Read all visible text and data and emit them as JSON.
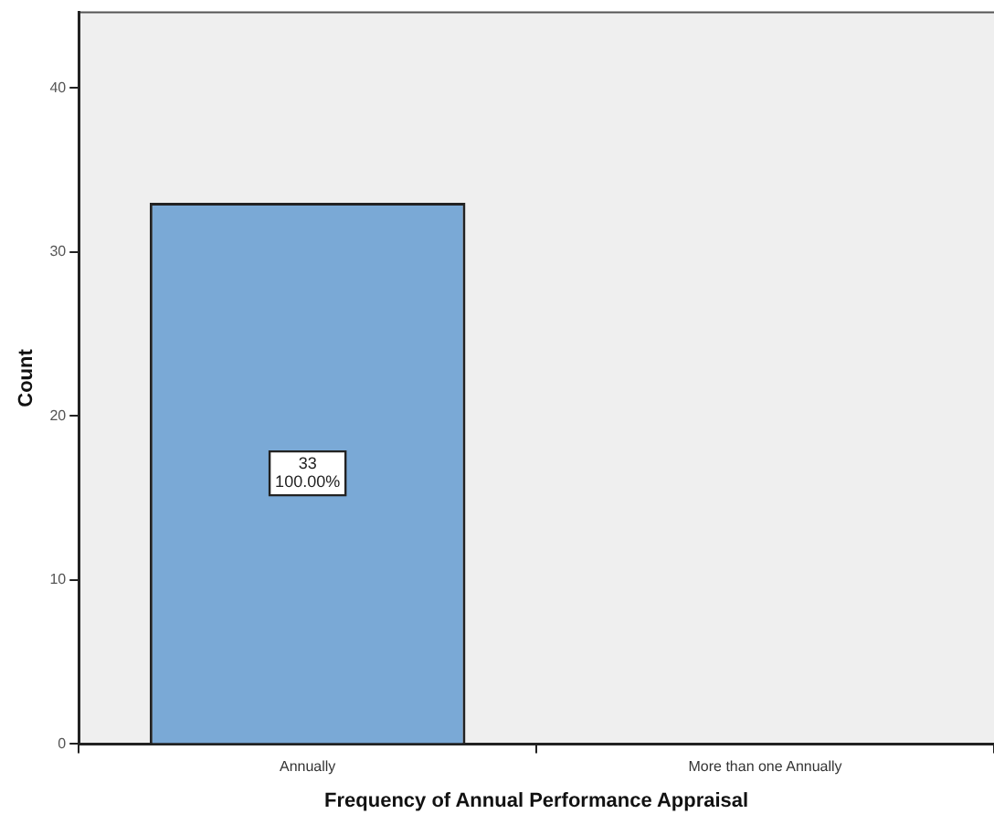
{
  "chart_data": {
    "type": "bar",
    "xlabel": "Frequency of Annual Performance Appraisal",
    "ylabel": "Count",
    "categories": [
      "Annually",
      "More than one Annually"
    ],
    "values": [
      33,
      0
    ],
    "value_labels": [
      "33",
      null
    ],
    "annotations": [
      {
        "text": "100.00%",
        "x": "Annually",
        "y": 16.5
      }
    ],
    "color": "#7aa9d6",
    "ylim": [
      0,
      44.6
    ],
    "yticks": [
      0,
      10,
      20,
      30,
      40
    ],
    "grid": false,
    "legend": false
  }
}
